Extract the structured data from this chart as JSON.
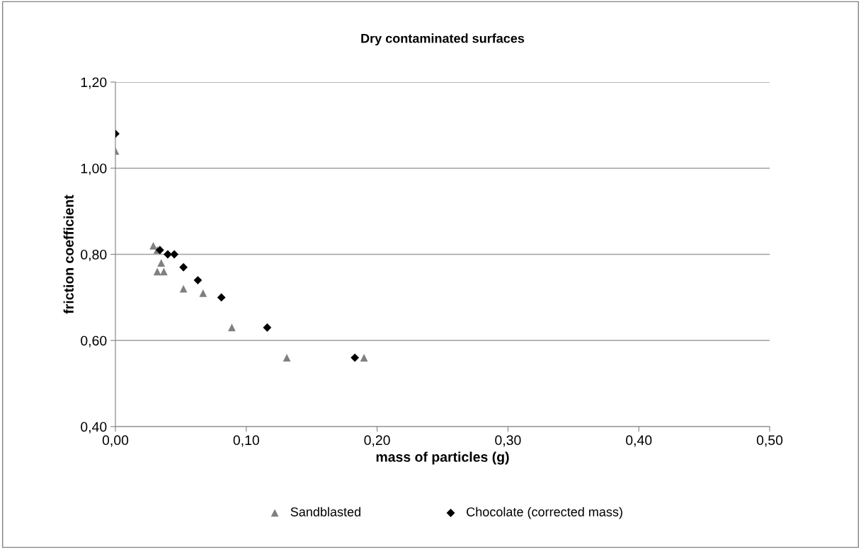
{
  "chart_data": {
    "type": "scatter",
    "title": "Dry contaminated surfaces",
    "xlabel": "mass of particles (g)",
    "ylabel": "friction coefficient",
    "xlim": [
      0,
      0.5
    ],
    "ylim": [
      0.4,
      1.2
    ],
    "xticks": [
      {
        "value": 0,
        "label": "0,00"
      },
      {
        "value": 0.1,
        "label": "0,10"
      },
      {
        "value": 0.2,
        "label": "0,20"
      },
      {
        "value": 0.3,
        "label": "0,30"
      },
      {
        "value": 0.4,
        "label": "0,40"
      },
      {
        "value": 0.5,
        "label": "0,50"
      }
    ],
    "yticks": [
      {
        "value": 0.4,
        "label": "0,40"
      },
      {
        "value": 0.6,
        "label": "0,60"
      },
      {
        "value": 0.8,
        "label": "0,80"
      },
      {
        "value": 1.0,
        "label": "1,00"
      },
      {
        "value": 1.2,
        "label": "1,20"
      }
    ],
    "grid": "y",
    "legend": "bottom",
    "series": [
      {
        "name": "Sandblasted",
        "color": "#808080",
        "marker": "triangle",
        "x": [
          0,
          0.029,
          0.032,
          0.035,
          0.032,
          0.037,
          0.052,
          0.067,
          0.089,
          0.131,
          0.19
        ],
        "values": [
          1.04,
          0.82,
          0.81,
          0.78,
          0.76,
          0.76,
          0.72,
          0.71,
          0.63,
          0.56,
          0.56
        ]
      },
      {
        "name": "Chocolate (corrected mass)",
        "color": "#000000",
        "marker": "diamond",
        "x": [
          0,
          0.034,
          0.04,
          0.045,
          0.052,
          0.063,
          0.081,
          0.116,
          0.183
        ],
        "values": [
          1.08,
          0.81,
          0.8,
          0.8,
          0.77,
          0.74,
          0.7,
          0.63,
          0.56
        ]
      }
    ]
  }
}
